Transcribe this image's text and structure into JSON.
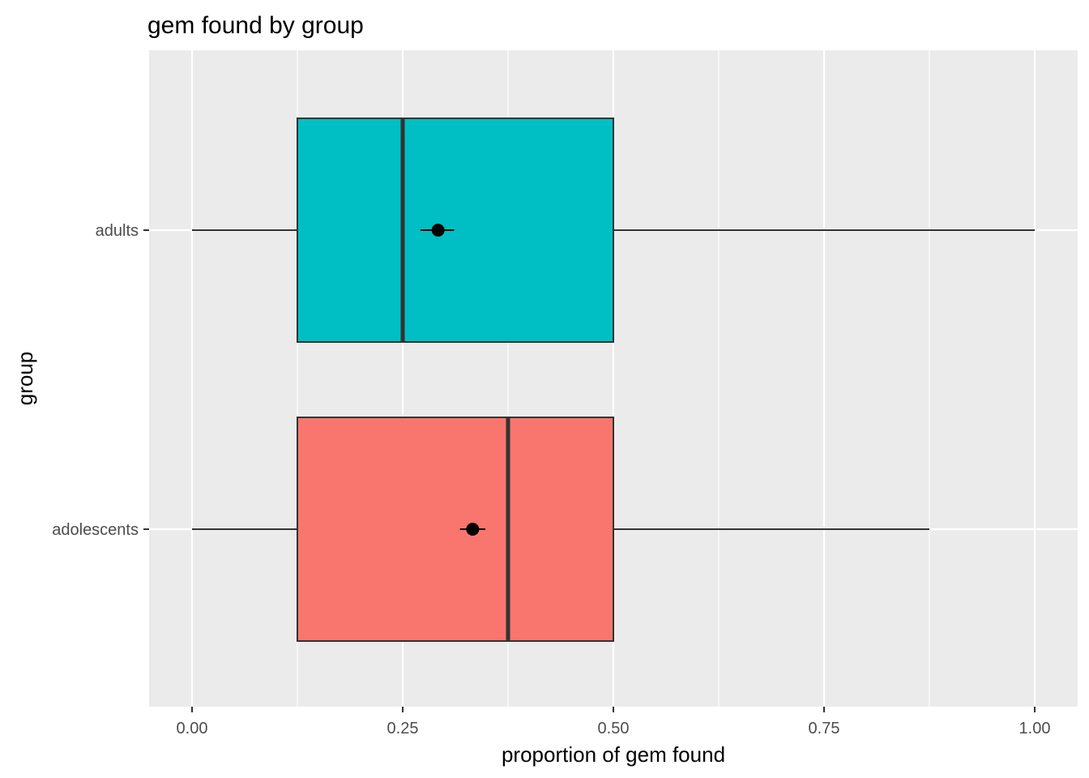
{
  "chart_data": {
    "type": "boxplot",
    "orientation": "horizontal",
    "title": "gem found by group",
    "xlabel": "proportion of gem found",
    "ylabel": "group",
    "xlim": [
      -0.1,
      1.05
    ],
    "x_ticks": [
      0,
      0.25,
      0.5,
      0.75,
      1
    ],
    "x_tick_labels": [
      "0.00",
      "0.25",
      "0.50",
      "0.75",
      "1.00"
    ],
    "grid": true,
    "groups": [
      {
        "name": "adolescents",
        "color": "#F8766D",
        "whisker_low": 0.0,
        "q1": 0.125,
        "median": 0.375,
        "q3": 0.5,
        "whisker_high": 0.875,
        "mean": 0.333,
        "mean_err_low": 0.318,
        "mean_err_high": 0.348
      },
      {
        "name": "adults",
        "color": "#00BFC4",
        "whisker_low": 0.0,
        "q1": 0.125,
        "median": 0.25,
        "q3": 0.5,
        "whisker_high": 1.0,
        "mean": 0.292,
        "mean_err_low": 0.271,
        "mean_err_high": 0.311
      }
    ]
  }
}
